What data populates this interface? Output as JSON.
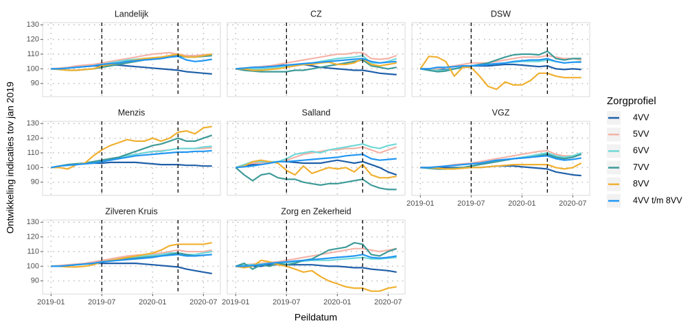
{
  "chart_data": {
    "type": "line",
    "xlabel": "Peildatum",
    "ylabel": "Ontwikkeling indicaties tov jan 2019",
    "legend_title": "Zorgprofiel",
    "legend_position": "right",
    "grid": true,
    "x": [
      "2019-01",
      "2019-02",
      "2019-03",
      "2019-04",
      "2019-05",
      "2019-06",
      "2019-07",
      "2019-08",
      "2019-09",
      "2019-10",
      "2019-11",
      "2019-12",
      "2020-01",
      "2020-02",
      "2020-03",
      "2020-04",
      "2020-05",
      "2020-06",
      "2020-07",
      "2020-08"
    ],
    "xlim": [
      "2018-12",
      "2020-09"
    ],
    "xticks": [
      "2019-01",
      "2019-07",
      "2020-01",
      "2020-07"
    ],
    "vlines": [
      "2019-07",
      "2020-04"
    ],
    "ylim": [
      81,
      131.5
    ],
    "yticks": [
      90,
      100,
      110,
      120,
      130
    ],
    "series": [
      {
        "name": "4VV",
        "color": "#1f5fa8"
      },
      {
        "name": "5VV",
        "color": "#f4b3a8"
      },
      {
        "name": "6VV",
        "color": "#6fd8d8"
      },
      {
        "name": "7VV",
        "color": "#3d9a98"
      },
      {
        "name": "8VV",
        "color": "#f0b030"
      },
      {
        "name": "4VV t/m 8VV",
        "color": "#2196f3"
      }
    ],
    "panels": [
      {
        "title": "Landelijk",
        "series_values": [
          [
            100,
            100,
            100.5,
            101,
            101.5,
            102,
            102,
            102.5,
            102.5,
            102,
            101.5,
            101,
            100.5,
            100,
            99.5,
            99,
            98,
            97.5,
            97,
            96.5
          ],
          [
            100,
            100.5,
            101,
            102,
            102.5,
            103,
            104,
            105,
            106,
            107,
            108,
            109,
            110,
            110.5,
            111,
            110,
            109,
            109,
            109.5,
            110
          ],
          [
            100,
            100,
            100.5,
            101,
            101.5,
            102,
            103,
            104,
            105,
            106,
            106.5,
            107,
            107.5,
            108,
            108.5,
            109,
            108,
            108,
            109,
            110
          ],
          [
            100,
            99.5,
            99,
            99,
            99.5,
            100,
            101,
            102,
            103,
            104,
            105,
            106,
            106.5,
            107,
            108,
            109,
            108,
            108,
            108.5,
            109
          ],
          [
            100,
            99.5,
            99,
            99,
            99.5,
            100,
            102,
            103,
            104,
            105,
            106,
            107,
            107.5,
            108,
            109,
            110,
            108,
            108,
            109,
            110
          ],
          [
            100,
            100,
            100.5,
            101,
            101.5,
            102,
            103,
            103.5,
            104,
            105,
            105.5,
            106,
            106.5,
            107,
            108,
            108.5,
            106,
            105,
            105.5,
            106.5
          ]
        ]
      },
      {
        "title": "CZ",
        "series_values": [
          [
            100,
            100,
            101,
            101.5,
            102,
            102.5,
            102.5,
            102,
            103,
            102,
            101,
            100.5,
            100,
            99.5,
            99,
            99,
            98,
            97,
            96.5,
            96
          ],
          [
            100,
            100.5,
            101,
            101.5,
            102,
            103,
            104,
            105,
            106,
            107,
            108,
            109,
            110,
            110,
            111,
            111,
            107,
            106.5,
            107,
            109
          ],
          [
            100,
            100,
            100,
            100,
            100.5,
            101,
            102,
            103,
            103.5,
            104,
            105,
            106,
            107,
            107.5,
            108,
            109,
            104,
            104,
            105,
            107
          ],
          [
            100,
            99,
            98.5,
            98,
            98,
            98,
            98,
            99,
            99,
            100,
            101,
            102,
            103,
            104,
            105,
            106,
            102,
            101,
            100,
            101
          ],
          [
            100,
            100,
            99,
            99,
            99.5,
            100,
            101,
            102,
            103,
            103,
            104,
            104.5,
            103,
            103,
            104,
            107,
            103,
            102,
            103,
            104
          ],
          [
            100,
            100.5,
            101,
            101,
            101.5,
            102,
            102.5,
            103,
            103.5,
            104,
            104.5,
            105,
            105.5,
            106,
            106.5,
            107,
            105,
            104,
            104.5,
            105
          ]
        ]
      },
      {
        "title": "DSW",
        "series_values": [
          [
            100,
            100,
            100,
            99.5,
            100,
            101,
            102,
            102,
            102,
            102.5,
            103,
            103,
            102.5,
            102,
            101.5,
            102,
            100,
            99.5,
            100,
            99.5
          ],
          [
            100,
            100,
            100,
            101,
            102,
            103,
            104,
            104,
            104,
            105,
            106,
            107,
            108,
            108,
            108,
            109,
            108,
            107,
            107,
            106
          ],
          [
            100,
            99,
            99,
            99,
            100,
            101,
            102,
            102.5,
            103,
            103.5,
            104,
            104.5,
            105,
            105,
            105,
            106,
            105,
            104,
            104.5,
            105
          ],
          [
            100,
            99,
            98,
            98.5,
            100,
            101,
            102,
            103,
            104,
            106,
            108,
            109.5,
            110,
            110,
            109.5,
            112,
            107,
            106,
            107,
            107
          ],
          [
            100,
            108.5,
            108,
            105,
            95,
            101,
            101,
            95,
            88,
            86,
            91,
            89,
            89,
            92,
            97,
            97,
            95,
            94,
            94,
            94
          ],
          [
            100,
            100,
            101,
            101,
            101.5,
            102,
            102,
            102.5,
            103,
            103.5,
            104,
            105,
            105.5,
            106,
            106,
            107,
            105,
            104,
            104.5,
            104.5
          ]
        ]
      },
      {
        "title": "Menzis",
        "series_values": [
          [
            100,
            101,
            102,
            102.5,
            103,
            103,
            103,
            103.5,
            103.5,
            103.5,
            103.5,
            103,
            102.5,
            102,
            102,
            102,
            101.5,
            101.5,
            101,
            101
          ],
          [
            100,
            101,
            102,
            102.5,
            103,
            104,
            105,
            106,
            107,
            108,
            109,
            110,
            111,
            111.5,
            112,
            113,
            113,
            113,
            113,
            113.5
          ],
          [
            100,
            101,
            102,
            102.5,
            103,
            104,
            105,
            106,
            107,
            108,
            109,
            110,
            111,
            111,
            112,
            113,
            113,
            113,
            114,
            114.5
          ],
          [
            100,
            101,
            102,
            102.5,
            103,
            104,
            105,
            106,
            107,
            109,
            111,
            113,
            115,
            116,
            118,
            120,
            118,
            118,
            120,
            122
          ],
          [
            100,
            100,
            99,
            102,
            103,
            108,
            112,
            115,
            117,
            119,
            118,
            118,
            120,
            118,
            120,
            124,
            125,
            123,
            127,
            128
          ],
          [
            100,
            101,
            101.5,
            102,
            102.5,
            103,
            104,
            105,
            106,
            107,
            108,
            108.5,
            109,
            109.5,
            110,
            110.5,
            110.5,
            111,
            111,
            111.5
          ]
        ]
      },
      {
        "title": "Salland",
        "series_values": [
          [
            100,
            101,
            102,
            103,
            103.5,
            104,
            104,
            103.5,
            103,
            103,
            103,
            104,
            105,
            104,
            103,
            104,
            102,
            100,
            97,
            95
          ],
          [
            100,
            102,
            103,
            103,
            103,
            104,
            105,
            107,
            109,
            110,
            111,
            112,
            112,
            113,
            113,
            114,
            112,
            110,
            112,
            114
          ],
          [
            100,
            102,
            104,
            104,
            104,
            104,
            106,
            109,
            110,
            111,
            110,
            112,
            113,
            114,
            115,
            116,
            114,
            113,
            115,
            116
          ],
          [
            100,
            95,
            91,
            95,
            96,
            93,
            92,
            92,
            90,
            89,
            88,
            89,
            89,
            90,
            91,
            92,
            88,
            86,
            85,
            85
          ],
          [
            100,
            101,
            104,
            105,
            104,
            103,
            98,
            95,
            101,
            96,
            98,
            100,
            99,
            100,
            97,
            102,
            95,
            93,
            93,
            94
          ],
          [
            100,
            100.5,
            101,
            102,
            103,
            104,
            104,
            104.5,
            105,
            105.5,
            106,
            106.5,
            107,
            108,
            108.5,
            109,
            106,
            105,
            105.5,
            106
          ]
        ]
      },
      {
        "title": "VGZ",
        "series_values": [
          [
            100,
            100,
            100,
            100,
            100,
            100,
            100,
            100,
            100.5,
            101,
            101,
            101,
            100.5,
            100,
            99.5,
            99,
            97,
            96,
            95,
            94.5
          ],
          [
            100,
            100,
            100.5,
            101,
            102,
            102.5,
            103,
            104,
            105,
            106,
            107,
            108,
            109,
            110,
            111,
            111.5,
            109,
            108,
            108,
            109
          ],
          [
            100,
            99.5,
            99,
            99,
            99.5,
            100,
            101,
            102,
            103,
            104,
            105,
            106,
            107,
            108,
            109,
            110,
            108,
            107,
            108,
            110
          ],
          [
            100,
            99.5,
            99,
            99,
            99.5,
            100,
            101,
            102,
            103,
            104,
            105,
            106,
            106.5,
            107,
            108,
            109,
            107,
            106,
            107,
            109
          ],
          [
            100,
            100,
            99.5,
            99,
            99,
            99.5,
            100,
            100,
            100.5,
            101,
            101.5,
            102,
            102,
            102,
            102,
            102,
            100,
            99,
            100,
            103
          ],
          [
            100,
            100,
            100.5,
            101,
            101.5,
            102,
            102.5,
            103,
            104,
            105,
            105.5,
            106,
            106.5,
            107,
            107.5,
            108,
            106,
            105,
            105.5,
            106.5
          ]
        ]
      },
      {
        "title": "Zilveren Kruis",
        "series_values": [
          [
            100,
            100,
            100.5,
            101,
            101.5,
            102,
            102,
            102,
            102,
            102,
            102,
            101.5,
            101,
            100.5,
            100,
            99.5,
            98,
            97,
            96,
            95
          ],
          [
            100,
            100.5,
            101,
            101.5,
            102,
            103,
            104,
            105,
            106,
            107,
            107.5,
            108,
            108.5,
            109,
            110,
            111,
            110,
            110,
            110,
            111
          ],
          [
            100,
            100,
            100.5,
            101,
            101.5,
            102,
            103,
            104,
            105,
            106,
            106.5,
            107,
            107.5,
            108,
            109,
            109,
            108,
            108,
            109,
            110
          ],
          [
            100,
            100,
            100.5,
            101,
            101.5,
            102,
            103,
            104,
            104.5,
            105,
            105.5,
            106,
            106.5,
            107,
            108,
            109,
            108,
            107,
            107.5,
            108
          ],
          [
            100,
            100,
            99.5,
            99.5,
            100,
            101,
            103,
            104,
            105,
            106,
            107,
            108,
            109,
            111,
            114,
            115,
            115,
            115,
            115,
            116
          ],
          [
            100,
            100,
            100.5,
            101,
            101.5,
            102,
            103,
            103.5,
            104,
            104.5,
            105,
            105.5,
            106,
            107,
            107.5,
            108,
            107,
            107,
            107.5,
            108
          ]
        ]
      },
      {
        "title": "Zorg en Zekerheid",
        "series_values": [
          [
            100,
            100,
            100,
            100,
            101,
            101,
            101,
            101,
            101,
            101,
            100.5,
            100,
            100,
            99.5,
            99,
            99,
            98,
            97.5,
            97,
            96
          ],
          [
            100,
            101,
            101.5,
            102,
            102.5,
            103,
            104,
            105,
            106,
            107,
            108,
            109,
            110,
            111,
            112,
            112,
            111,
            110,
            111,
            112
          ],
          [
            100,
            101,
            101,
            101.5,
            102,
            102,
            102.5,
            103,
            103.5,
            104,
            104,
            104,
            104.5,
            105,
            105.5,
            106,
            105,
            105,
            105.5,
            106
          ],
          [
            100,
            102,
            98,
            101,
            100,
            102,
            101,
            102,
            104,
            105,
            108,
            111,
            112,
            113,
            116,
            115,
            108,
            107,
            110,
            112
          ],
          [
            100,
            99,
            100,
            104,
            103,
            101,
            100,
            98,
            96,
            97,
            93,
            90,
            88,
            86,
            85,
            85,
            83,
            83,
            85,
            86
          ],
          [
            100,
            100,
            100.5,
            101,
            102,
            102.5,
            103,
            103.5,
            104,
            104.5,
            105,
            105.5,
            106,
            106.5,
            107,
            108,
            106,
            105.5,
            106,
            107
          ]
        ]
      }
    ]
  }
}
